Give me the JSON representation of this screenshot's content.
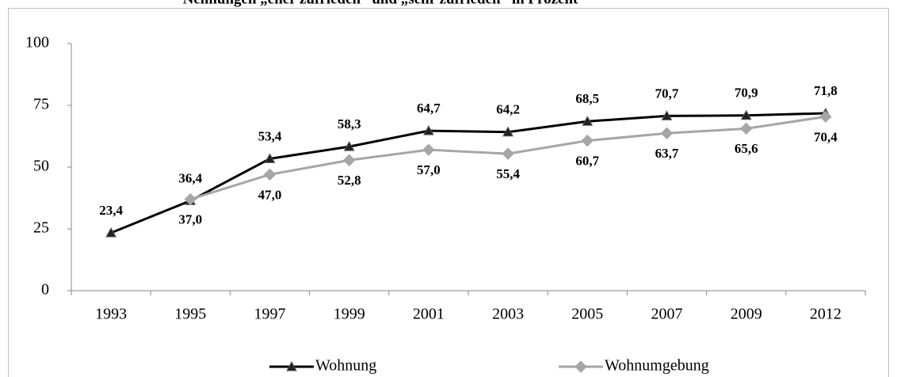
{
  "chart_data": {
    "type": "line",
    "title": "Nennungen „eher zufrieden“ und „sehr zufrieden“ in Prozent",
    "categories": [
      "1993",
      "1995",
      "1997",
      "1999",
      "2001",
      "2003",
      "2005",
      "2007",
      "2009",
      "2012"
    ],
    "series": [
      {
        "name": "Wohnung",
        "color": "#000000",
        "marker": "triangle",
        "values": [
          23.4,
          36.4,
          53.4,
          58.3,
          64.7,
          64.2,
          68.5,
          70.7,
          70.9,
          71.8
        ],
        "value_labels": [
          "23,4",
          "36,4",
          "53,4",
          "58,3",
          "64,7",
          "64,2",
          "68,5",
          "70,7",
          "70,9",
          "71,8"
        ]
      },
      {
        "name": "Wohnumgebung",
        "color": "#a6a6a6",
        "marker": "diamond",
        "values": [
          null,
          37.0,
          47.0,
          52.8,
          57.0,
          55.4,
          60.7,
          63.7,
          65.6,
          70.4
        ],
        "value_labels": [
          null,
          "37,0",
          "47,0",
          "52,8",
          "57,0",
          "55,4",
          "60,7",
          "63,7",
          "65,6",
          "70,4"
        ]
      }
    ],
    "ylim": [
      0,
      100
    ],
    "yticks": [
      0,
      25,
      50,
      75,
      100
    ],
    "grid": false,
    "legend": "bottom"
  }
}
